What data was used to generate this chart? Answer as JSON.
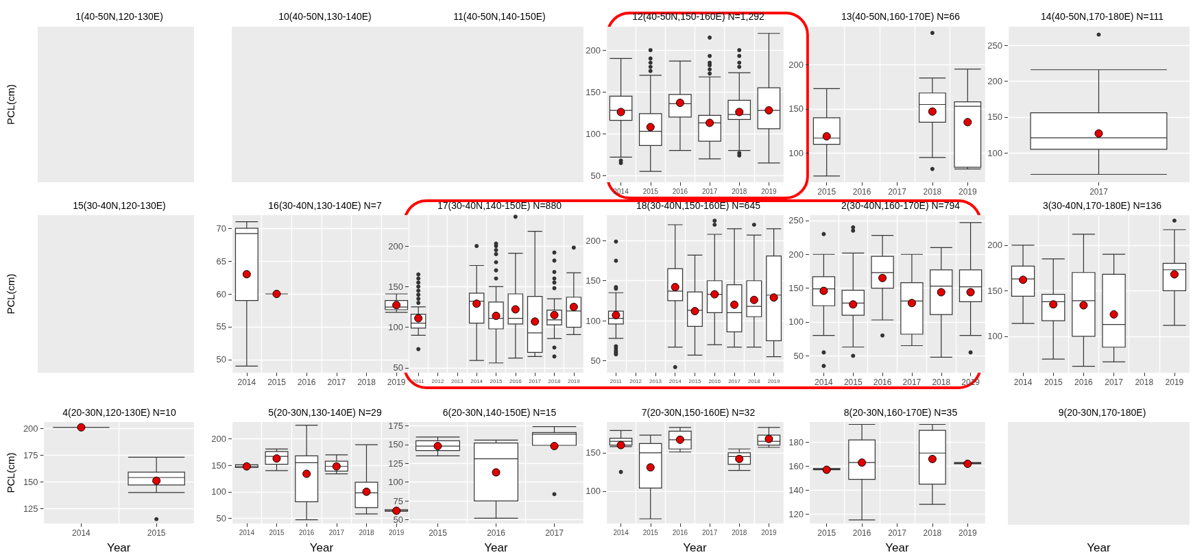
{
  "chart_data": [
    {
      "type": "other",
      "title": "1(40-50N,120-130E)",
      "ylabel": "PCL(cm)"
    },
    {
      "type": "other",
      "title": "10(40-50N,130-140E)"
    },
    {
      "type": "other",
      "title": "11(40-50N,140-150E)"
    },
    {
      "type": "box",
      "title": "12(40-50N,150-160E) N=1,292",
      "categories": [
        "2014",
        "2015",
        "2016",
        "2017",
        "2018",
        "2019"
      ],
      "ylim": [
        42,
        228
      ],
      "yticks": [
        50,
        100,
        150,
        200
      ],
      "grid": true,
      "color": "#333333",
      "boxes": [
        {
          "low": 72,
          "q1": 116,
          "median": 128,
          "q3": 145,
          "high": 190,
          "mean": 126,
          "outliers": [
            68,
            65
          ]
        },
        {
          "low": 55,
          "q1": 86,
          "median": 103,
          "q3": 124,
          "high": 170,
          "mean": 108,
          "outliers": [
            175,
            180,
            185,
            190,
            200
          ]
        },
        {
          "low": 80,
          "q1": 120,
          "median": 136,
          "q3": 147,
          "high": 187,
          "mean": 137
        },
        {
          "low": 70,
          "q1": 91,
          "median": 113,
          "q3": 122,
          "high": 168,
          "mean": 113,
          "outliers": [
            172,
            177,
            182,
            185,
            193,
            215
          ]
        },
        {
          "low": 80,
          "q1": 117,
          "median": 123,
          "q3": 140,
          "high": 173,
          "mean": 126,
          "outliers": [
            74,
            77,
            180,
            185,
            193,
            200
          ]
        },
        {
          "low": 65,
          "q1": 106,
          "median": 128,
          "q3": 155,
          "high": 220,
          "mean": 128
        }
      ]
    },
    {
      "type": "box",
      "title": "13(40-50N,160-170E) N=66",
      "categories": [
        "2015",
        "2016",
        "2017",
        "2018",
        "2019"
      ],
      "ylim": [
        67,
        243
      ],
      "yticks": [
        100,
        150,
        200
      ],
      "grid": true,
      "color": "#333333",
      "boxes": [
        {
          "low": 74,
          "q1": 110,
          "median": 117,
          "q3": 140,
          "high": 173,
          "mean": 119
        },
        null,
        null,
        {
          "low": 95,
          "q1": 135,
          "median": 155,
          "q3": 168,
          "high": 185,
          "mean": 147,
          "outliers": [
            236,
            82
          ]
        },
        {
          "low": 82,
          "q1": 84,
          "median": 153,
          "q3": 158,
          "high": 195,
          "mean": 135
        }
      ]
    },
    {
      "type": "box",
      "title": "14(40-50N,170-180E) N=111",
      "categories": [
        "2017"
      ],
      "ylim": [
        59,
        276
      ],
      "yticks": [
        100,
        150,
        200,
        250
      ],
      "grid": true,
      "color": "#333333",
      "boxes": [
        {
          "low": 70,
          "q1": 105,
          "median": 121,
          "q3": 156,
          "high": 216,
          "mean": 127,
          "outliers": [
            265
          ]
        }
      ]
    },
    {
      "type": "other",
      "title": "15(30-40N,120-130E)",
      "ylabel": "PCL(cm)"
    },
    {
      "type": "box",
      "title": "16(30-40N,130-140E) N=7",
      "categories": [
        "2014",
        "2015",
        "2016",
        "2017",
        "2018",
        "2019"
      ],
      "ylim": [
        48,
        72
      ],
      "yticks": [
        50,
        55,
        60,
        65,
        70
      ],
      "grid": true,
      "color": "#333333",
      "boxes": [
        {
          "low": 49,
          "q1": 59,
          "median": 69.2,
          "q3": 70,
          "high": 71,
          "mean": 63
        },
        {
          "low": 60,
          "q1": 60,
          "median": 60,
          "q3": 60,
          "high": 60,
          "mean": 60
        },
        null,
        null,
        null,
        {
          "low": 57.2,
          "q1": 57.6,
          "median": 58,
          "q3": 59,
          "high": 60,
          "mean": 58.3
        }
      ]
    },
    {
      "type": "box",
      "title": "17(30-40N,140-150E) N=880",
      "categories": [
        "2011",
        "2012",
        "2013",
        "2014",
        "2015",
        "2016",
        "2017",
        "2018",
        "2019"
      ],
      "ylim": [
        44,
        238
      ],
      "yticks": [
        50,
        100,
        150,
        200
      ],
      "grid": true,
      "color": "#333333",
      "boxes": [
        {
          "low": 90,
          "q1": 99,
          "median": 105,
          "q3": 116,
          "high": 125,
          "mean": 111,
          "outliers": [
            130,
            135,
            140,
            145,
            150,
            155,
            160,
            165,
            73
          ]
        },
        null,
        null,
        {
          "low": 59,
          "q1": 105,
          "median": 132,
          "q3": 142,
          "high": 176,
          "mean": 129,
          "outliers": [
            200
          ]
        },
        {
          "low": 56,
          "q1": 98,
          "median": 111,
          "q3": 131,
          "high": 150,
          "mean": 114,
          "outliers": [
            160,
            170,
            180,
            190,
            195,
            200,
            203
          ]
        },
        {
          "low": 62,
          "q1": 104,
          "median": 111,
          "q3": 141,
          "high": 191,
          "mean": 122,
          "outliers": [
            236
          ]
        },
        {
          "low": 64,
          "q1": 69,
          "median": 93,
          "q3": 138,
          "high": 218,
          "mean": 107
        },
        {
          "low": 86,
          "q1": 103,
          "median": 109,
          "q3": 121,
          "high": 135,
          "mean": 115,
          "outliers": [
            148,
            155,
            160,
            168,
            182,
            192,
            75,
            64
          ]
        },
        {
          "low": 91,
          "q1": 100,
          "median": 120,
          "q3": 137,
          "high": 167,
          "mean": 125,
          "outliers": [
            198
          ]
        }
      ]
    },
    {
      "type": "box",
      "title": "18(30-40N,150-160E) N=645",
      "categories": [
        "2011",
        "2012",
        "2013",
        "2014",
        "2015",
        "2016",
        "2017",
        "2018",
        "2019"
      ],
      "ylim": [
        35,
        232
      ],
      "yticks": [
        50,
        100,
        150,
        200
      ],
      "grid": true,
      "color": "#333333",
      "boxes": [
        {
          "low": 78,
          "q1": 96,
          "median": 103,
          "q3": 112,
          "high": 135,
          "mean": 107,
          "outliers": [
            199,
            175,
            142,
            140,
            68,
            65,
            62,
            60,
            58
          ]
        },
        null,
        null,
        {
          "low": 67,
          "q1": 125,
          "median": 137,
          "q3": 165,
          "high": 220,
          "mean": 142,
          "outliers": [
            42
          ]
        },
        {
          "low": 57,
          "q1": 93,
          "median": 113,
          "q3": 136,
          "high": 182,
          "mean": 112
        },
        {
          "low": 70,
          "q1": 110,
          "median": 133,
          "q3": 150,
          "high": 208,
          "mean": 133,
          "outliers": [
            220,
            225
          ]
        },
        {
          "low": 67,
          "q1": 86,
          "median": 110,
          "q3": 145,
          "high": 215,
          "mean": 120
        },
        {
          "low": 67,
          "q1": 105,
          "median": 118,
          "q3": 150,
          "high": 207,
          "mean": 126,
          "outliers": [
            220
          ]
        },
        {
          "low": 55,
          "q1": 75,
          "median": 132,
          "q3": 181,
          "high": 215,
          "mean": 129
        }
      ]
    },
    {
      "type": "box",
      "title": "2(30-40N,160-170E) N=794",
      "categories": [
        "2014",
        "2015",
        "2016",
        "2017",
        "2018",
        "2019"
      ],
      "ylim": [
        25,
        258
      ],
      "yticks": [
        50,
        100,
        150,
        200,
        250
      ],
      "grid": true,
      "color": "#333333",
      "boxes": [
        {
          "low": 80,
          "q1": 124,
          "median": 149,
          "q3": 167,
          "high": 200,
          "mean": 146,
          "outliers": [
            230,
            55,
            35
          ]
        },
        {
          "low": 63,
          "q1": 110,
          "median": 128,
          "q3": 147,
          "high": 202,
          "mean": 126,
          "outliers": [
            235,
            240,
            50
          ]
        },
        {
          "low": 103,
          "q1": 150,
          "median": 173,
          "q3": 197,
          "high": 228,
          "mean": 165,
          "outliers": [
            80
          ]
        },
        {
          "low": 65,
          "q1": 82,
          "median": 131,
          "q3": 158,
          "high": 200,
          "mean": 128
        },
        {
          "low": 48,
          "q1": 111,
          "median": 153,
          "q3": 177,
          "high": 210,
          "mean": 144
        },
        {
          "low": 80,
          "q1": 130,
          "median": 152,
          "q3": 177,
          "high": 247,
          "mean": 144,
          "outliers": [
            55
          ]
        }
      ]
    },
    {
      "type": "box",
      "title": "3(30-40N,170-180E) N=136",
      "categories": [
        "2014",
        "2015",
        "2016",
        "2017",
        "2018",
        "2019"
      ],
      "ylim": [
        60,
        233
      ],
      "yticks": [
        100,
        150,
        200
      ],
      "grid": true,
      "color": "#333333",
      "boxes": [
        {
          "low": 114,
          "q1": 144,
          "median": 163,
          "q3": 177,
          "high": 200,
          "mean": 162
        },
        {
          "low": 75,
          "q1": 117,
          "median": 138,
          "q3": 146,
          "high": 185,
          "mean": 135
        },
        {
          "low": 67,
          "q1": 100,
          "median": 139,
          "q3": 170,
          "high": 212,
          "mean": 134
        },
        {
          "low": 72,
          "q1": 88,
          "median": 113,
          "q3": 168,
          "high": 190,
          "mean": 124
        },
        null,
        {
          "low": 112,
          "q1": 150,
          "median": 173,
          "q3": 180,
          "high": 217,
          "mean": 168,
          "outliers": [
            227
          ]
        }
      ]
    },
    {
      "type": "box",
      "title": "4(20-30N,120-130E) N=10",
      "xlabel": "Year",
      "ylabel": "PCL(cm)",
      "categories": [
        "2014",
        "2015"
      ],
      "ylim": [
        111,
        206
      ],
      "yticks": [
        125,
        150,
        175,
        200
      ],
      "grid": true,
      "color": "#333333",
      "boxes": [
        {
          "low": 201,
          "q1": 201,
          "median": 201,
          "q3": 201,
          "high": 201,
          "mean": 201
        },
        {
          "low": 140,
          "q1": 147,
          "median": 154,
          "q3": 159,
          "high": 173,
          "mean": 151,
          "outliers": [
            115
          ]
        }
      ]
    },
    {
      "type": "box",
      "title": "5(20-30N,130-140E) N=29",
      "xlabel": "Year",
      "categories": [
        "2014",
        "2015",
        "2016",
        "2017",
        "2018",
        "2019"
      ],
      "ylim": [
        40,
        232
      ],
      "yticks": [
        50,
        100,
        150,
        200
      ],
      "grid": true,
      "color": "#333333",
      "boxes": [
        {
          "low": 146,
          "q1": 146,
          "median": 148,
          "q3": 151,
          "high": 151,
          "mean": 148
        },
        {
          "low": 140,
          "q1": 152,
          "median": 167,
          "q3": 176,
          "high": 181,
          "mean": 163
        },
        {
          "low": 47,
          "q1": 81,
          "median": 155,
          "q3": 168,
          "high": 226,
          "mean": 134
        },
        {
          "low": 134,
          "q1": 139,
          "median": 148,
          "q3": 158,
          "high": 170,
          "mean": 148
        },
        {
          "low": 58,
          "q1": 70,
          "median": 98,
          "q3": 118,
          "high": 189,
          "mean": 100
        },
        {
          "low": 63,
          "q1": 63,
          "median": 64,
          "q3": 66,
          "high": 66,
          "mean": 64
        }
      ]
    },
    {
      "type": "box",
      "title": "6(20-30N,140-150E) N=15",
      "xlabel": "Year",
      "categories": [
        "2015",
        "2016",
        "2017"
      ],
      "ylim": [
        45,
        180
      ],
      "yticks": [
        50,
        75,
        100,
        125,
        150,
        175
      ],
      "grid": true,
      "color": "#333333",
      "boxes": [
        {
          "low": 135,
          "q1": 142,
          "median": 148,
          "q3": 155,
          "high": 160,
          "mean": 148
        },
        {
          "low": 52,
          "q1": 75,
          "median": 131,
          "q3": 152,
          "high": 156,
          "mean": 113
        },
        {
          "low": 149,
          "q1": 149,
          "median": 164,
          "q3": 166,
          "high": 174,
          "mean": 148,
          "outliers": [
            84
          ]
        }
      ]
    },
    {
      "type": "box",
      "title": "7(20-30N,150-160E) N=32",
      "xlabel": "Year",
      "categories": [
        "2014",
        "2015",
        "2016",
        "2017",
        "2018",
        "2019"
      ],
      "ylim": [
        58,
        190
      ],
      "yticks": [
        100,
        150
      ],
      "grid": true,
      "color": "#333333",
      "boxes": [
        {
          "low": 158,
          "q1": 160,
          "median": 165,
          "q3": 169,
          "high": 179,
          "mean": 160,
          "outliers": [
            125
          ]
        },
        {
          "low": 64,
          "q1": 104,
          "median": 150,
          "q3": 162,
          "high": 173,
          "mean": 131
        },
        {
          "low": 151,
          "q1": 155,
          "median": 167,
          "q3": 178,
          "high": 183,
          "mean": 167
        },
        null,
        {
          "low": 127,
          "q1": 135,
          "median": 145,
          "q3": 150,
          "high": 155,
          "mean": 142
        },
        {
          "low": 157,
          "q1": 160,
          "median": 165,
          "q3": 173,
          "high": 183,
          "mean": 168
        }
      ]
    },
    {
      "type": "box",
      "title": "8(20-30N,160-170E) N=35",
      "xlabel": "Year",
      "categories": [
        "2015",
        "2016",
        "2017",
        "2018",
        "2019"
      ],
      "ylim": [
        112,
        197
      ],
      "yticks": [
        120,
        140,
        160,
        180
      ],
      "grid": true,
      "color": "#333333",
      "boxes": [
        {
          "low": 157,
          "q1": 157,
          "median": 157.5,
          "q3": 158,
          "high": 158,
          "mean": 157
        },
        {
          "low": 115,
          "q1": 149,
          "median": 163,
          "q3": 182,
          "high": 195,
          "mean": 163
        },
        null,
        {
          "low": 128,
          "q1": 145,
          "median": 171,
          "q3": 190,
          "high": 195,
          "mean": 166
        },
        {
          "low": 162,
          "q1": 162,
          "median": 162.5,
          "q3": 163,
          "high": 163,
          "mean": 162
        }
      ]
    },
    {
      "type": "other",
      "title": "9(20-30N,170-180E)",
      "xlabel": "Year"
    }
  ]
}
